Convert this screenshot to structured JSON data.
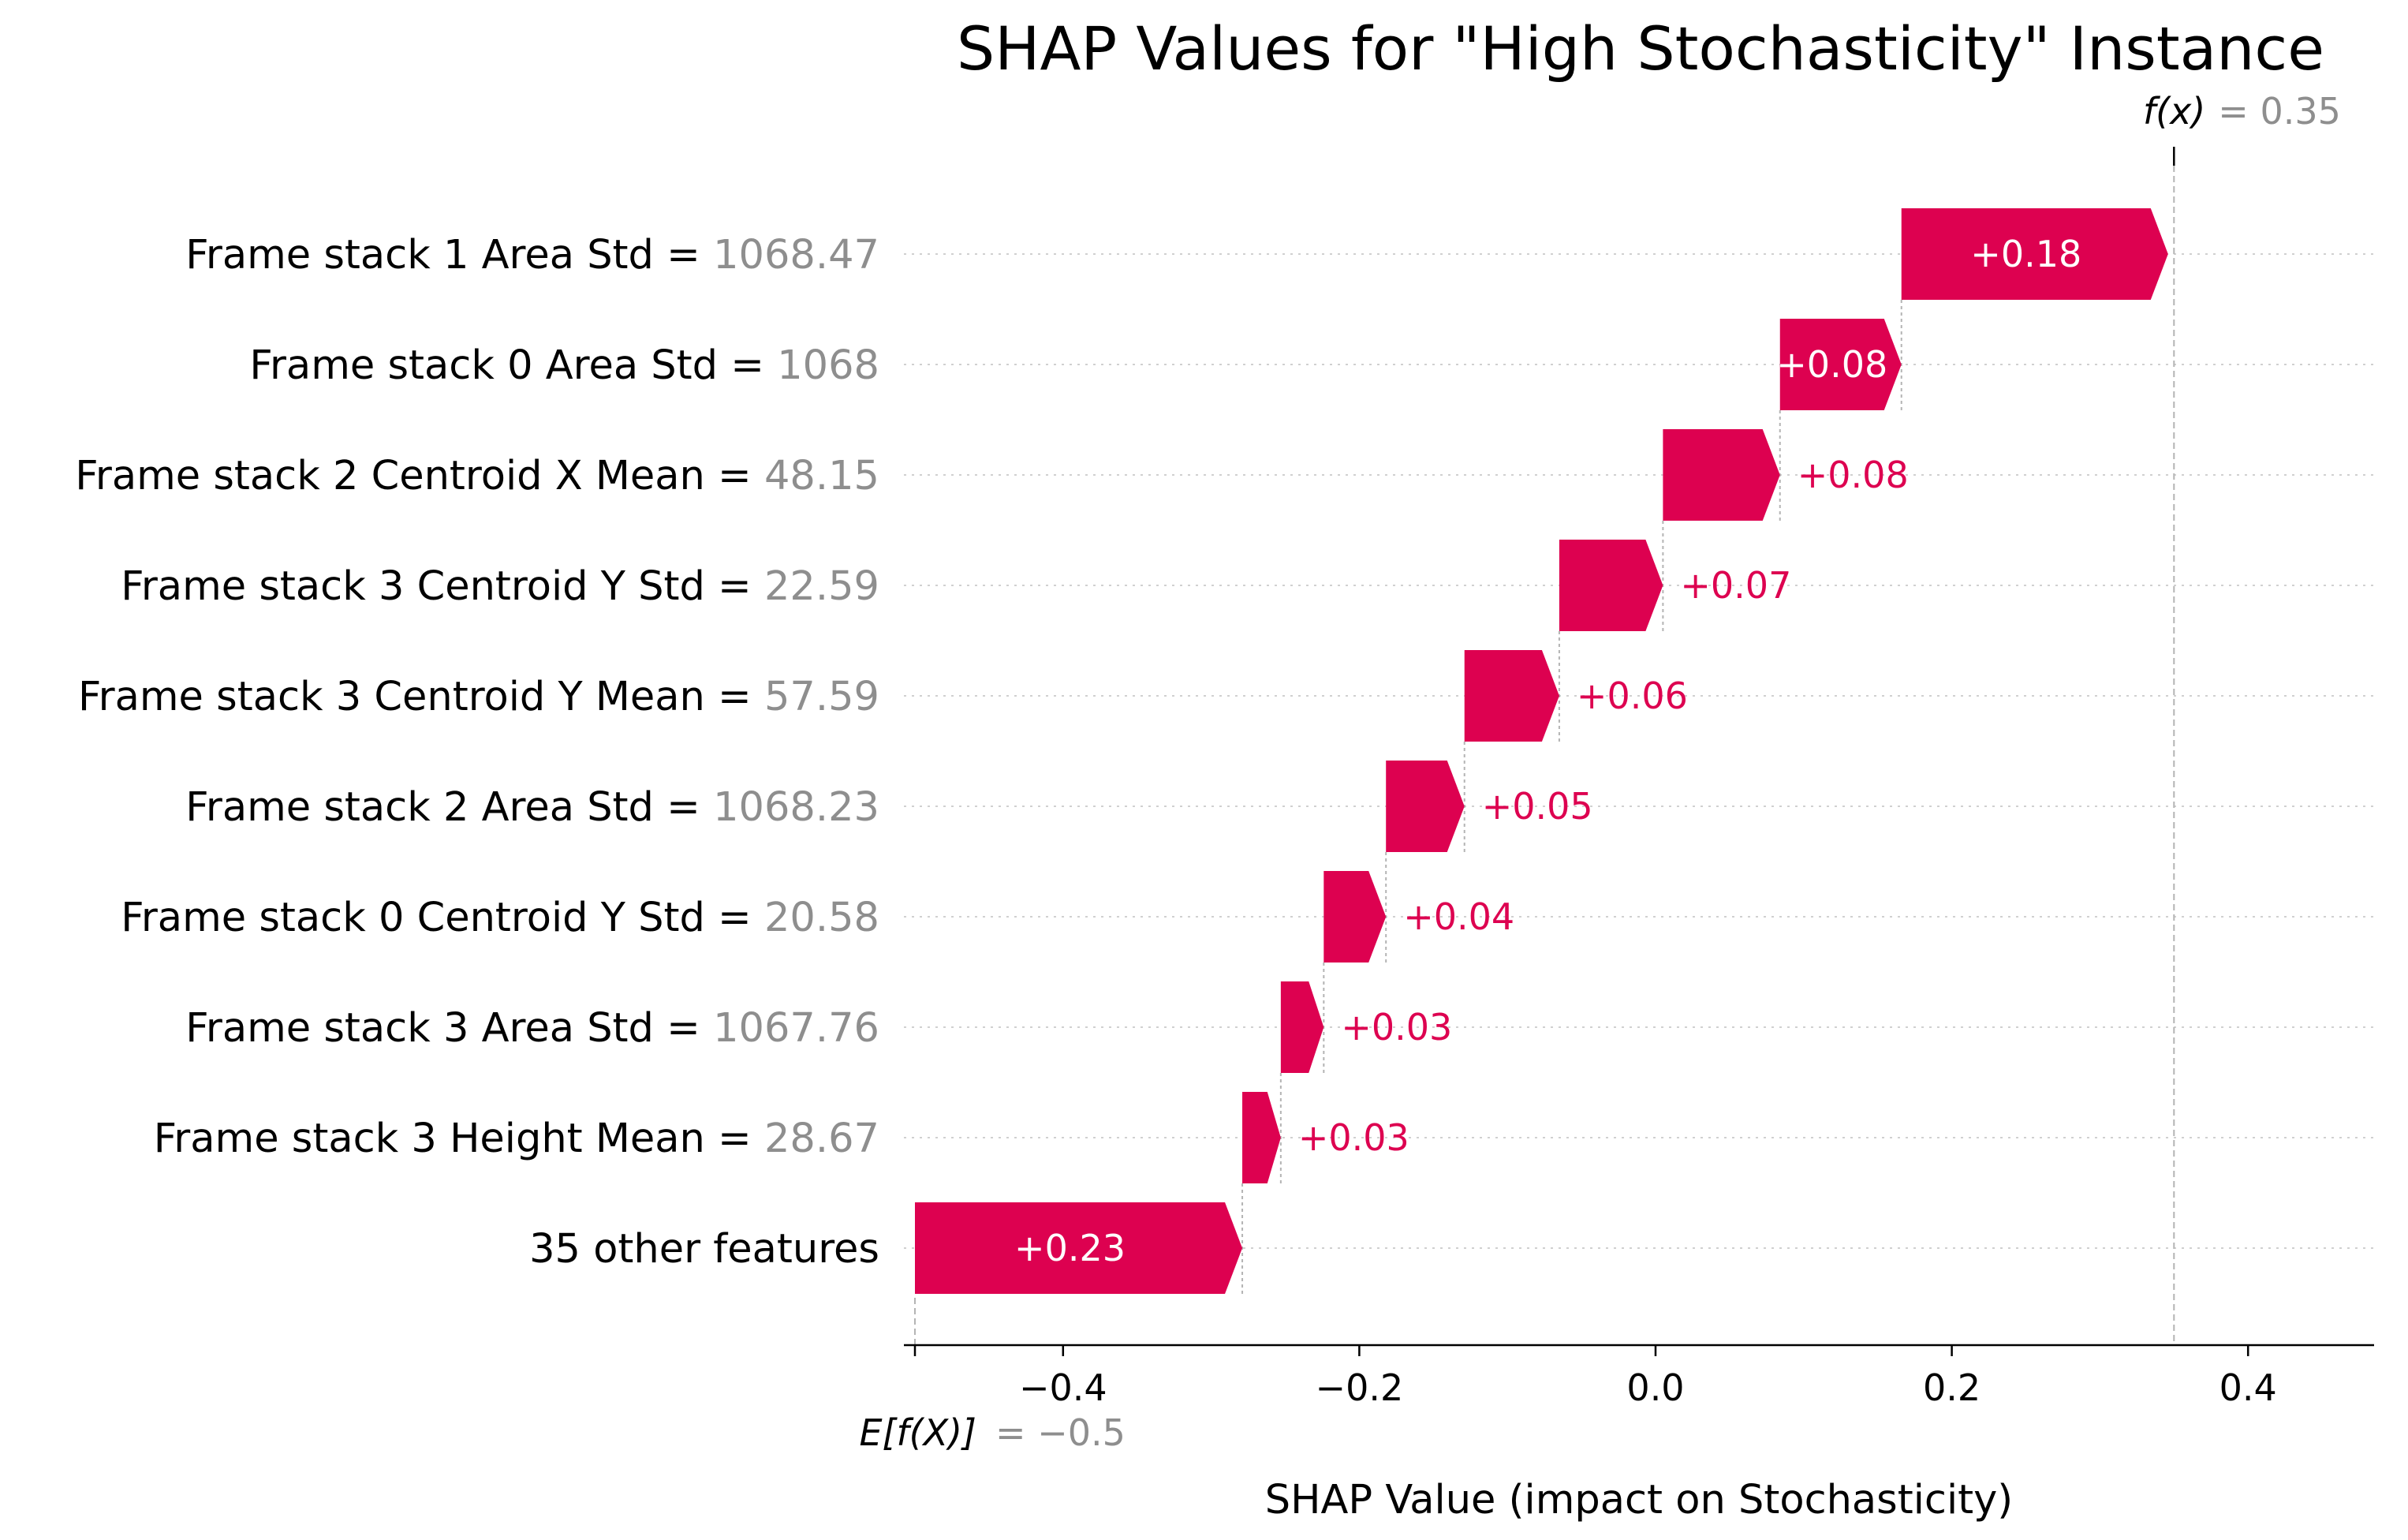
{
  "chart_data": {
    "type": "waterfall",
    "title": "SHAP Values for \"High Stochasticity\" Instance",
    "xlabel": "SHAP Value (impact on Stochasticity)",
    "xlim": [
      -0.5,
      0.5
    ],
    "xticks": [
      -0.4,
      -0.2,
      0.0,
      0.2,
      0.4
    ],
    "xtick_labels": [
      "−0.4",
      "−0.2",
      "0.0",
      "0.2",
      "0.4"
    ],
    "base_value": -0.5,
    "base_label": "E[f(X)]",
    "base_value_text": "= −0.5",
    "output_value": 0.35,
    "output_label": "f(x)",
    "output_value_text": "= 0.35",
    "positive_color": "#dd0150",
    "grid": "horizontal dotted",
    "features": [
      {
        "name": "Frame stack 1 Area Std",
        "value_text": "1068.47",
        "start": 0.166,
        "end": 0.346,
        "label": "+0.18",
        "label_inside": true
      },
      {
        "name": "Frame stack 0 Area Std",
        "value_text": "1068",
        "start": 0.084,
        "end": 0.166,
        "label": "+0.08",
        "label_inside": true
      },
      {
        "name": "Frame stack 2 Centroid X Mean",
        "value_text": "48.15",
        "start": 0.005,
        "end": 0.084,
        "label": "+0.08",
        "label_inside": false
      },
      {
        "name": "Frame stack 3 Centroid Y Std",
        "value_text": "22.59",
        "start": -0.065,
        "end": 0.005,
        "label": "+0.07",
        "label_inside": false
      },
      {
        "name": "Frame stack 3 Centroid Y Mean",
        "value_text": "57.59",
        "start": -0.129,
        "end": -0.065,
        "label": "+0.06",
        "label_inside": false
      },
      {
        "name": "Frame stack 2 Area Std",
        "value_text": "1068.23",
        "start": -0.182,
        "end": -0.129,
        "label": "+0.05",
        "label_inside": false
      },
      {
        "name": "Frame stack 0 Centroid Y Std",
        "value_text": "20.58",
        "start": -0.224,
        "end": -0.182,
        "label": "+0.04",
        "label_inside": false
      },
      {
        "name": "Frame stack 3 Area Std",
        "value_text": "1067.76",
        "start": -0.253,
        "end": -0.224,
        "label": "+0.03",
        "label_inside": false
      },
      {
        "name": "Frame stack 3 Height Mean",
        "value_text": "28.67",
        "start": -0.279,
        "end": -0.253,
        "label": "+0.03",
        "label_inside": false
      },
      {
        "name": "35 other features",
        "value_text": "",
        "start": -0.5,
        "end": -0.279,
        "label": "+0.23",
        "label_inside": true
      }
    ]
  }
}
